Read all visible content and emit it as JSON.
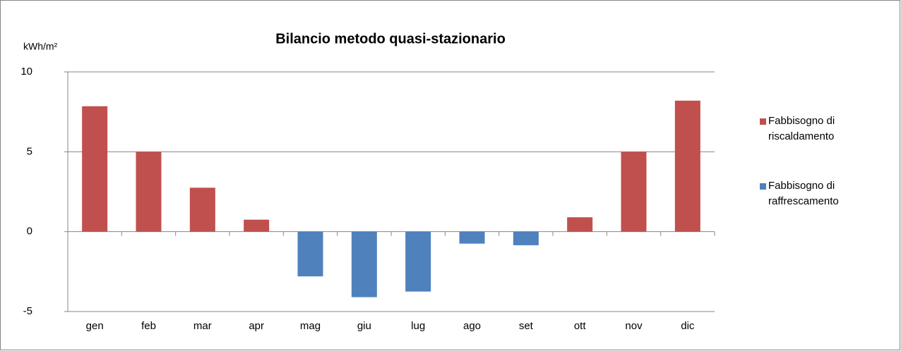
{
  "chart_data": {
    "type": "bar",
    "title": "Bilancio metodo quasi-stazionario",
    "y_label": "kWh/m²",
    "categories": [
      "gen",
      "feb",
      "mar",
      "apr",
      "mag",
      "giu",
      "lug",
      "ago",
      "set",
      "ott",
      "nov",
      "dic"
    ],
    "series": [
      {
        "name": "Fabbisogno di riscaldamento",
        "color": "#c0504d",
        "values": [
          7.85,
          5.0,
          2.75,
          0.75,
          null,
          null,
          null,
          null,
          null,
          0.9,
          5.0,
          8.2
        ]
      },
      {
        "name": "Fabbisogno di raffrescamento",
        "color": "#4f81bd",
        "values": [
          null,
          null,
          null,
          null,
          -2.8,
          -4.1,
          -3.75,
          -0.75,
          -0.85,
          null,
          null,
          null
        ]
      }
    ],
    "ylim": [
      -5,
      10
    ],
    "yticks": [
      -5,
      0,
      5,
      10
    ],
    "grid": true,
    "legend": "right"
  }
}
